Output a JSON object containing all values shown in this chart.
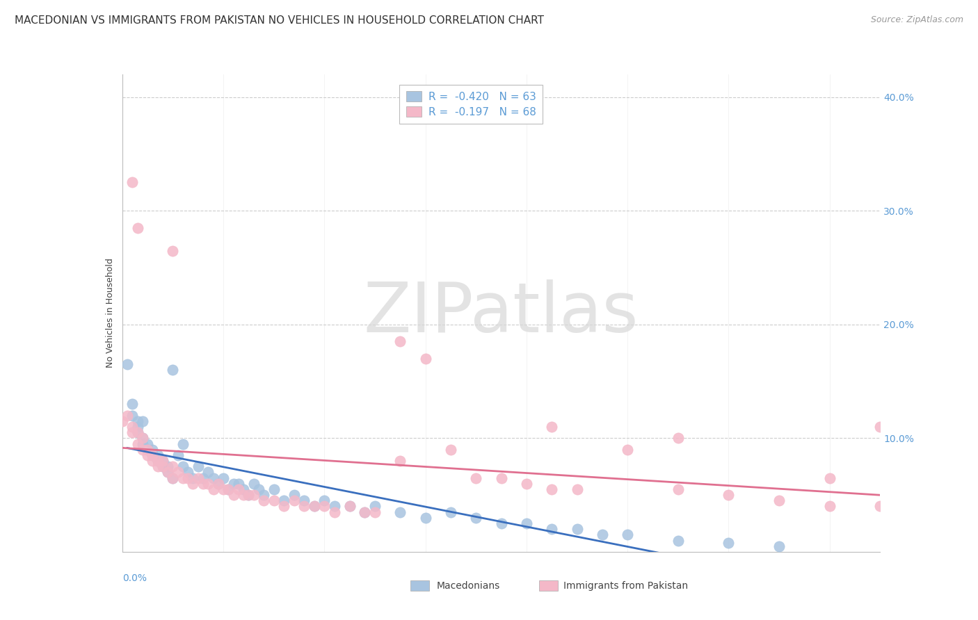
{
  "title": "MACEDONIAN VS IMMIGRANTS FROM PAKISTAN NO VEHICLES IN HOUSEHOLD CORRELATION CHART",
  "source": "Source: ZipAtlas.com",
  "ylabel": "No Vehicles in Household",
  "xlim": [
    0.0,
    0.15
  ],
  "ylim": [
    0.0,
    0.42
  ],
  "yticks": [
    0.1,
    0.2,
    0.3,
    0.4
  ],
  "xtick_left": "0.0%",
  "mac_color": "#a8c4e0",
  "pak_color": "#f4b8c8",
  "mac_line_color": "#3a6fbe",
  "pak_line_color": "#e07090",
  "tick_color": "#5b9bd5",
  "grid_color": "#cccccc",
  "bg_color": "#ffffff",
  "watermark": "ZIPatlas",
  "title_fontsize": 11,
  "source_fontsize": 9,
  "tick_fontsize": 10,
  "ylabel_fontsize": 9,
  "legend_label1": "R =  -0.420   N = 63",
  "legend_label2": "R =  -0.197   N = 68",
  "bottom_label1": "Macedonians",
  "bottom_label2": "Immigrants from Pakistan",
  "mac_x": [
    0.001,
    0.002,
    0.002,
    0.003,
    0.003,
    0.003,
    0.004,
    0.004,
    0.004,
    0.005,
    0.005,
    0.006,
    0.006,
    0.007,
    0.007,
    0.008,
    0.008,
    0.009,
    0.009,
    0.01,
    0.01,
    0.011,
    0.012,
    0.012,
    0.013,
    0.014,
    0.015,
    0.016,
    0.017,
    0.018,
    0.019,
    0.02,
    0.021,
    0.022,
    0.023,
    0.024,
    0.025,
    0.026,
    0.027,
    0.028,
    0.03,
    0.032,
    0.034,
    0.036,
    0.038,
    0.04,
    0.042,
    0.045,
    0.048,
    0.05,
    0.055,
    0.06,
    0.065,
    0.07,
    0.075,
    0.08,
    0.085,
    0.09,
    0.095,
    0.1,
    0.11,
    0.12,
    0.13
  ],
  "mac_y": [
    0.165,
    0.12,
    0.13,
    0.105,
    0.11,
    0.115,
    0.095,
    0.1,
    0.115,
    0.09,
    0.095,
    0.085,
    0.09,
    0.08,
    0.085,
    0.075,
    0.08,
    0.07,
    0.075,
    0.065,
    0.16,
    0.085,
    0.075,
    0.095,
    0.07,
    0.065,
    0.075,
    0.065,
    0.07,
    0.065,
    0.06,
    0.065,
    0.055,
    0.06,
    0.06,
    0.055,
    0.05,
    0.06,
    0.055,
    0.05,
    0.055,
    0.045,
    0.05,
    0.045,
    0.04,
    0.045,
    0.04,
    0.04,
    0.035,
    0.04,
    0.035,
    0.03,
    0.035,
    0.03,
    0.025,
    0.025,
    0.02,
    0.02,
    0.015,
    0.015,
    0.01,
    0.008,
    0.005
  ],
  "pak_x": [
    0.0,
    0.001,
    0.002,
    0.002,
    0.003,
    0.003,
    0.004,
    0.004,
    0.005,
    0.005,
    0.006,
    0.006,
    0.007,
    0.007,
    0.008,
    0.008,
    0.009,
    0.01,
    0.01,
    0.011,
    0.012,
    0.013,
    0.014,
    0.015,
    0.016,
    0.017,
    0.018,
    0.019,
    0.02,
    0.021,
    0.022,
    0.023,
    0.024,
    0.025,
    0.026,
    0.028,
    0.03,
    0.032,
    0.034,
    0.036,
    0.038,
    0.04,
    0.042,
    0.045,
    0.048,
    0.05,
    0.055,
    0.06,
    0.065,
    0.07,
    0.075,
    0.08,
    0.085,
    0.09,
    0.1,
    0.11,
    0.12,
    0.13,
    0.14,
    0.15,
    0.002,
    0.003,
    0.01,
    0.055,
    0.085,
    0.11,
    0.15,
    0.14
  ],
  "pak_y": [
    0.115,
    0.12,
    0.105,
    0.11,
    0.095,
    0.105,
    0.09,
    0.1,
    0.085,
    0.09,
    0.08,
    0.085,
    0.075,
    0.08,
    0.075,
    0.08,
    0.07,
    0.065,
    0.075,
    0.07,
    0.065,
    0.065,
    0.06,
    0.065,
    0.06,
    0.06,
    0.055,
    0.06,
    0.055,
    0.055,
    0.05,
    0.055,
    0.05,
    0.05,
    0.05,
    0.045,
    0.045,
    0.04,
    0.045,
    0.04,
    0.04,
    0.04,
    0.035,
    0.04,
    0.035,
    0.035,
    0.08,
    0.17,
    0.09,
    0.065,
    0.065,
    0.06,
    0.055,
    0.055,
    0.09,
    0.055,
    0.05,
    0.045,
    0.04,
    0.04,
    0.325,
    0.285,
    0.265,
    0.185,
    0.11,
    0.1,
    0.11,
    0.065
  ]
}
